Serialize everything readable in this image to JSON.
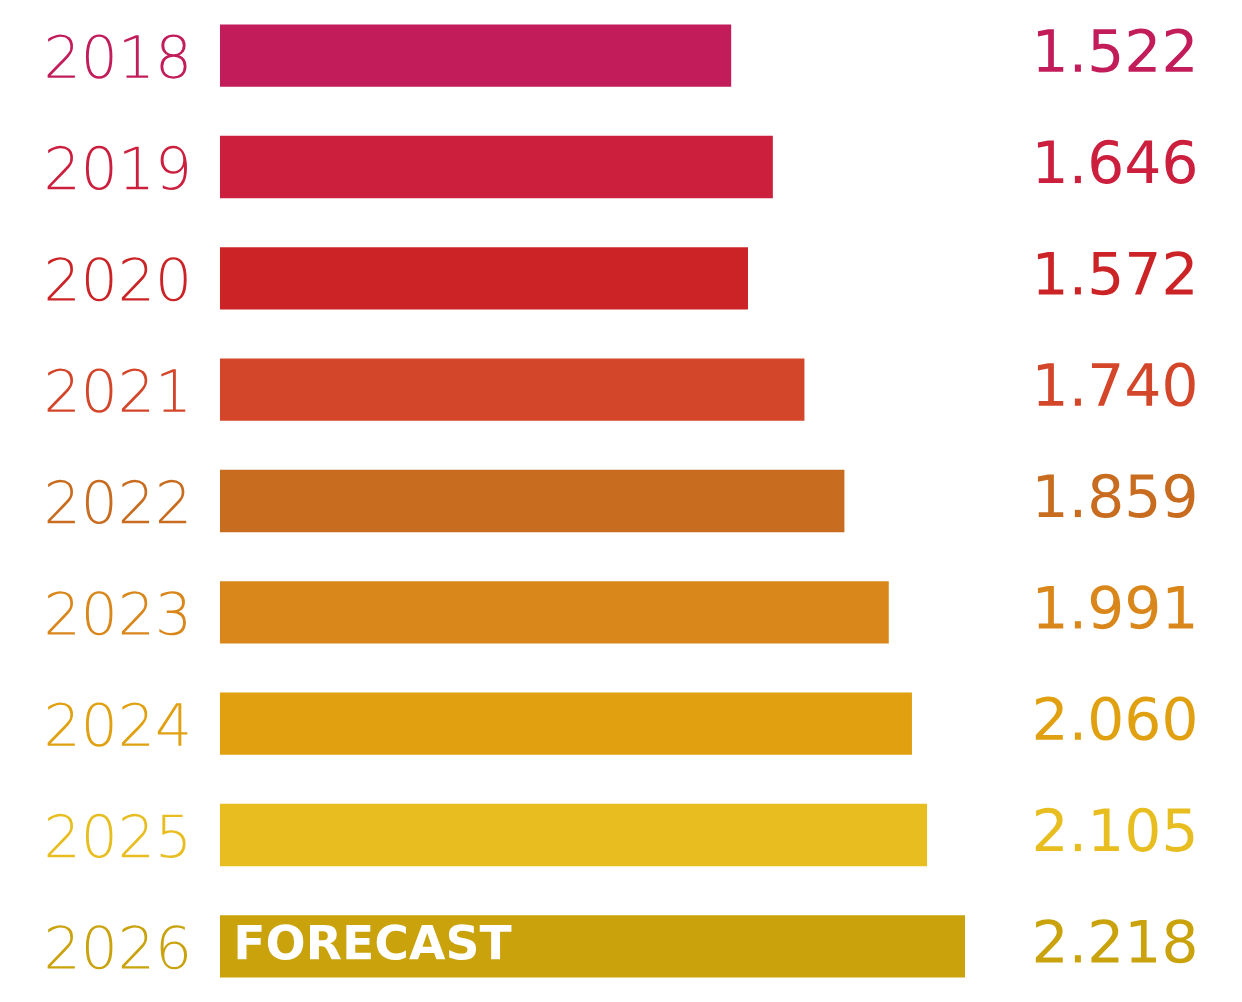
{
  "chart_data": {
    "type": "bar",
    "orientation": "horizontal",
    "categories": [
      "2018",
      "2019",
      "2020",
      "2021",
      "2022",
      "2023",
      "2024",
      "2025",
      "2026"
    ],
    "values": [
      1.522,
      1.646,
      1.572,
      1.74,
      1.859,
      1.991,
      2.06,
      2.105,
      2.218
    ],
    "colors": [
      "#c21d5a",
      "#cc1f3e",
      "#cc2426",
      "#d4462a",
      "#c86c1f",
      "#d9871a",
      "#e0a010",
      "#e8bd1f",
      "#c9a20c"
    ],
    "value_labels": [
      "1.522",
      "1.646",
      "1.572",
      "1.740",
      "1.859",
      "1.991",
      "2.060",
      "2.105",
      "2.218"
    ],
    "annotations": [
      "FORECAST"
    ],
    "grid": false,
    "legend": false,
    "tick_labels": "y"
  }
}
